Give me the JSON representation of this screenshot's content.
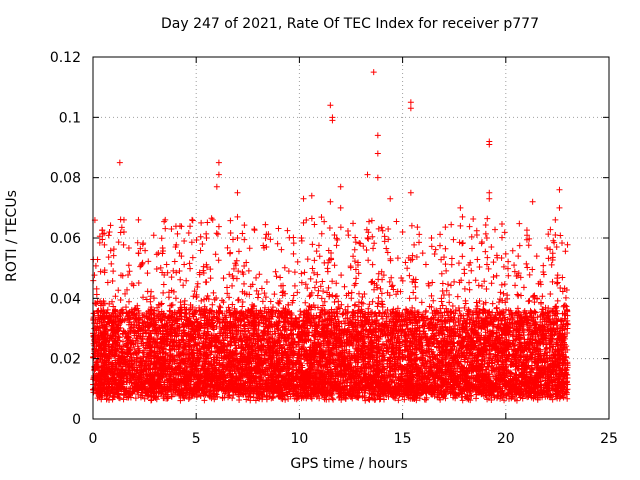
{
  "chart_data": {
    "type": "scatter",
    "title": "Day 247 of 2021, Rate Of TEC Index for receiver p777",
    "xlabel": "GPS time / hours",
    "ylabel": "ROTI / TECUs",
    "xlim": [
      0,
      25
    ],
    "ylim": [
      0,
      0.12
    ],
    "x_ticks": [
      "0",
      "5",
      "10",
      "15",
      "20",
      "25"
    ],
    "y_ticks": [
      "0",
      "0.02",
      "0.04",
      "0.06",
      "0.08",
      "0.1",
      "0.12"
    ],
    "grid": true,
    "marker": "plus",
    "color": "#ff0000",
    "series": [
      {
        "data_range_x": [
          0,
          23
        ],
        "typical_band_y": [
          0.008,
          0.035
        ],
        "points": [
          [
            1.3,
            0.085
          ],
          [
            3.5,
            0.066
          ],
          [
            4.8,
            0.066
          ],
          [
            5.8,
            0.066
          ],
          [
            6.1,
            0.085
          ],
          [
            6.1,
            0.081
          ],
          [
            6.0,
            0.077
          ],
          [
            7.0,
            0.075
          ],
          [
            7.0,
            0.067
          ],
          [
            7.0,
            0.06
          ],
          [
            10.2,
            0.073
          ],
          [
            10.2,
            0.065
          ],
          [
            10.6,
            0.074
          ],
          [
            11.5,
            0.104
          ],
          [
            11.6,
            0.1
          ],
          [
            11.6,
            0.099
          ],
          [
            11.5,
            0.072
          ],
          [
            12.0,
            0.077
          ],
          [
            12.0,
            0.07
          ],
          [
            13.3,
            0.081
          ],
          [
            13.6,
            0.115
          ],
          [
            13.8,
            0.094
          ],
          [
            13.8,
            0.088
          ],
          [
            13.8,
            0.08
          ],
          [
            14.4,
            0.073
          ],
          [
            15.4,
            0.105
          ],
          [
            15.4,
            0.103
          ],
          [
            15.4,
            0.075
          ],
          [
            17.8,
            0.07
          ],
          [
            17.9,
            0.067
          ],
          [
            19.2,
            0.092
          ],
          [
            19.2,
            0.091
          ],
          [
            19.2,
            0.075
          ],
          [
            19.2,
            0.073
          ],
          [
            19.3,
            0.057
          ],
          [
            21.3,
            0.072
          ],
          [
            22.6,
            0.076
          ],
          [
            22.6,
            0.07
          ],
          [
            22.4,
            0.066
          ],
          [
            1.5,
            0.066
          ],
          [
            1.5,
            0.062
          ],
          [
            0.8,
            0.062
          ],
          [
            3.8,
            0.063
          ],
          [
            2.2,
            0.055
          ],
          [
            4.0,
            0.057
          ],
          [
            5.5,
            0.06
          ],
          [
            5.3,
            0.058
          ],
          [
            8.4,
            0.057
          ],
          [
            10.1,
            0.06
          ],
          [
            11.7,
            0.061
          ],
          [
            13.3,
            0.06
          ],
          [
            14.3,
            0.063
          ],
          [
            15.0,
            0.062
          ],
          [
            16.4,
            0.06
          ],
          [
            17.8,
            0.064
          ],
          [
            18.6,
            0.061
          ],
          [
            22.4,
            0.061
          ],
          [
            21.5,
            0.054
          ],
          [
            20.4,
            0.051
          ]
        ]
      }
    ]
  }
}
